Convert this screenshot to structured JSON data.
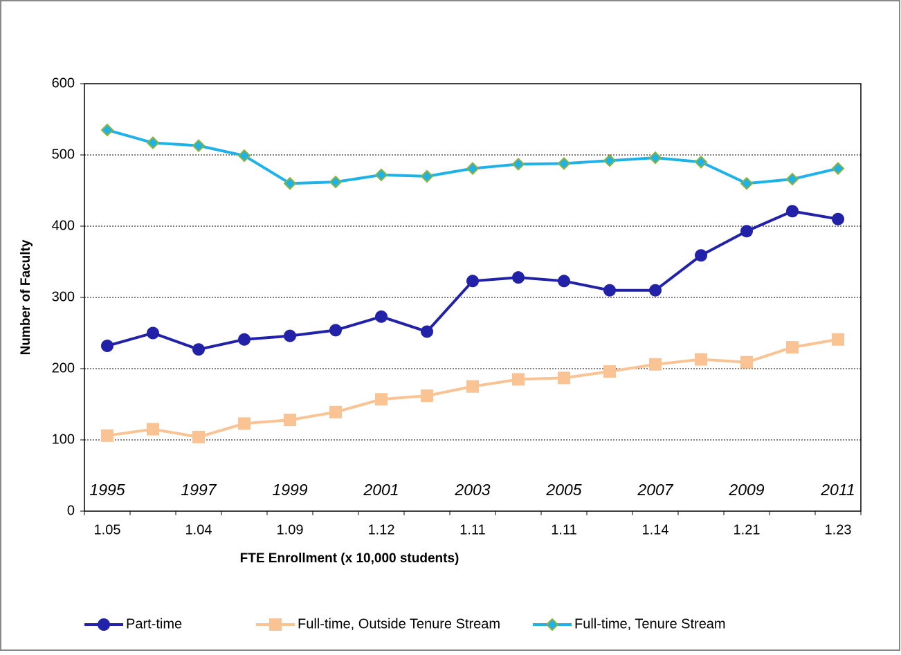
{
  "chart_data": {
    "type": "line",
    "x_label": "FTE Enrollment (x 10,000 students)",
    "y_label": "Number of Faculty",
    "categories": [
      "1.05",
      null,
      "1.04",
      null,
      "1.09",
      null,
      "1.12",
      null,
      "1.11",
      null,
      "1.11",
      null,
      "1.14",
      null,
      "1.21",
      null,
      "1.23"
    ],
    "year_labels": [
      "1995",
      null,
      "1997",
      null,
      "1999",
      null,
      "2001",
      null,
      "2003",
      null,
      "2005",
      null,
      "2007",
      null,
      "2009",
      null,
      "2011"
    ],
    "series": [
      {
        "name": "Part-time",
        "color": "#2222a8",
        "marker": "circle",
        "values": [
          232,
          250,
          227,
          241,
          246,
          254,
          273,
          252,
          323,
          328,
          323,
          310,
          310,
          359,
          393,
          421,
          410
        ]
      },
      {
        "name": "Full-time, Outside Tenure Stream",
        "color": "#fac394",
        "marker": "square",
        "values": [
          106,
          115,
          104,
          123,
          128,
          139,
          157,
          162,
          175,
          185,
          187,
          196,
          206,
          213,
          209,
          230,
          241
        ]
      },
      {
        "name": "Full-time, Tenure Stream",
        "color": "#1fb2e8",
        "marker": "diamond",
        "marker_edge": "#8ab33c",
        "values": [
          535,
          517,
          513,
          499,
          460,
          462,
          472,
          470,
          481,
          487,
          488,
          492,
          496,
          490,
          460,
          466,
          481
        ]
      }
    ],
    "ylim": [
      0,
      600
    ],
    "yticks": [
      0,
      100,
      200,
      300,
      400,
      500,
      600
    ],
    "grid": true,
    "legend": "bottom"
  }
}
